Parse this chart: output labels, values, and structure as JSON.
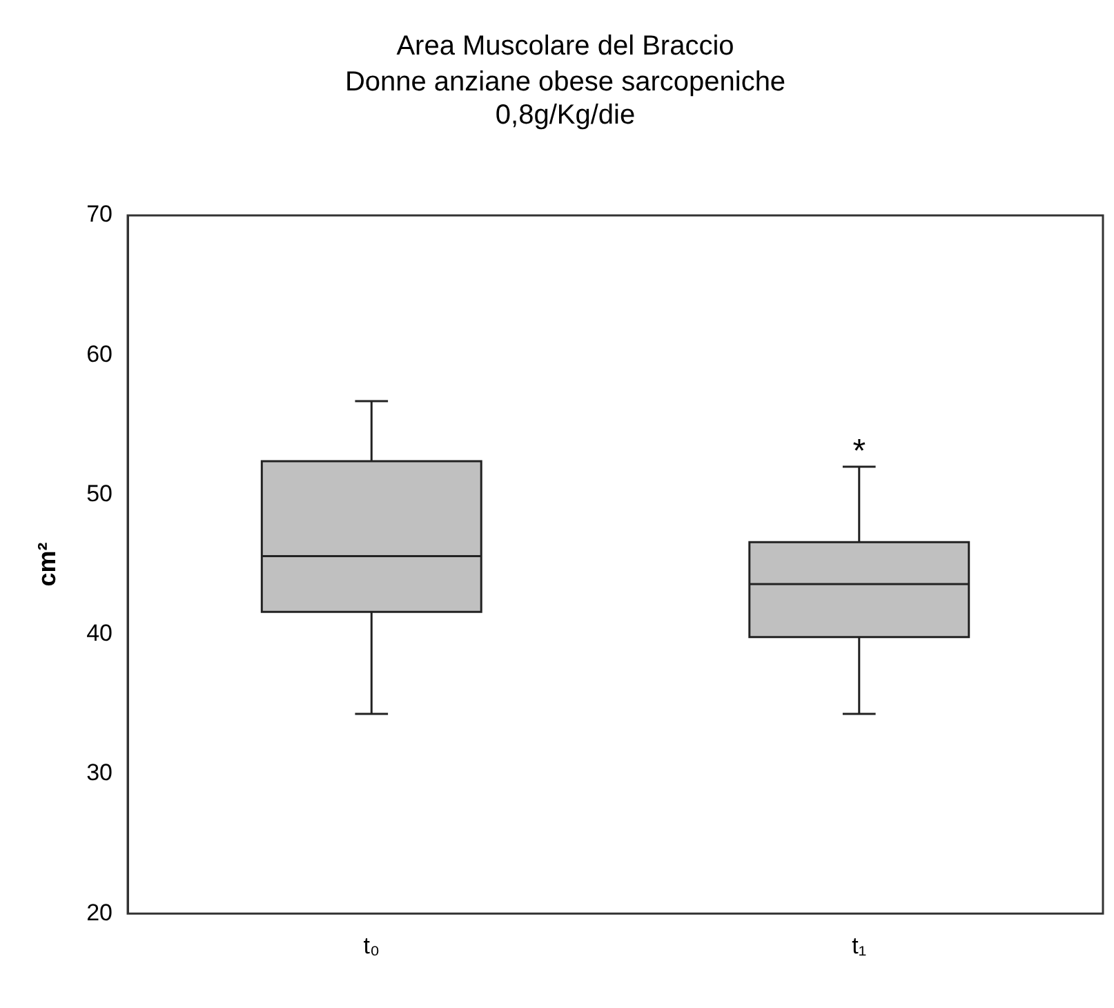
{
  "chart_data": {
    "type": "box",
    "title": "Area Muscolare del Braccio",
    "subtitle": "Donne anziane obese sarcopeniche\n0,8g/Kg/die",
    "ylabel": "cm²",
    "categories": [
      "t₀",
      "t₁"
    ],
    "color": "#c0c0c0",
    "boxes": [
      {
        "low": 34.3,
        "q1": 41.6,
        "median": 45.6,
        "q3": 52.4,
        "high": 56.7
      },
      {
        "low": 34.3,
        "q1": 39.8,
        "median": 43.6,
        "q3": 46.6,
        "high": 52.0
      }
    ],
    "ylim": [
      20,
      70
    ],
    "yticks": [
      20,
      30,
      40,
      50,
      60,
      70
    ],
    "grid": false,
    "legend": false,
    "annotations": [
      {
        "text": "*",
        "x": "t₁",
        "y": 52.0
      }
    ]
  }
}
